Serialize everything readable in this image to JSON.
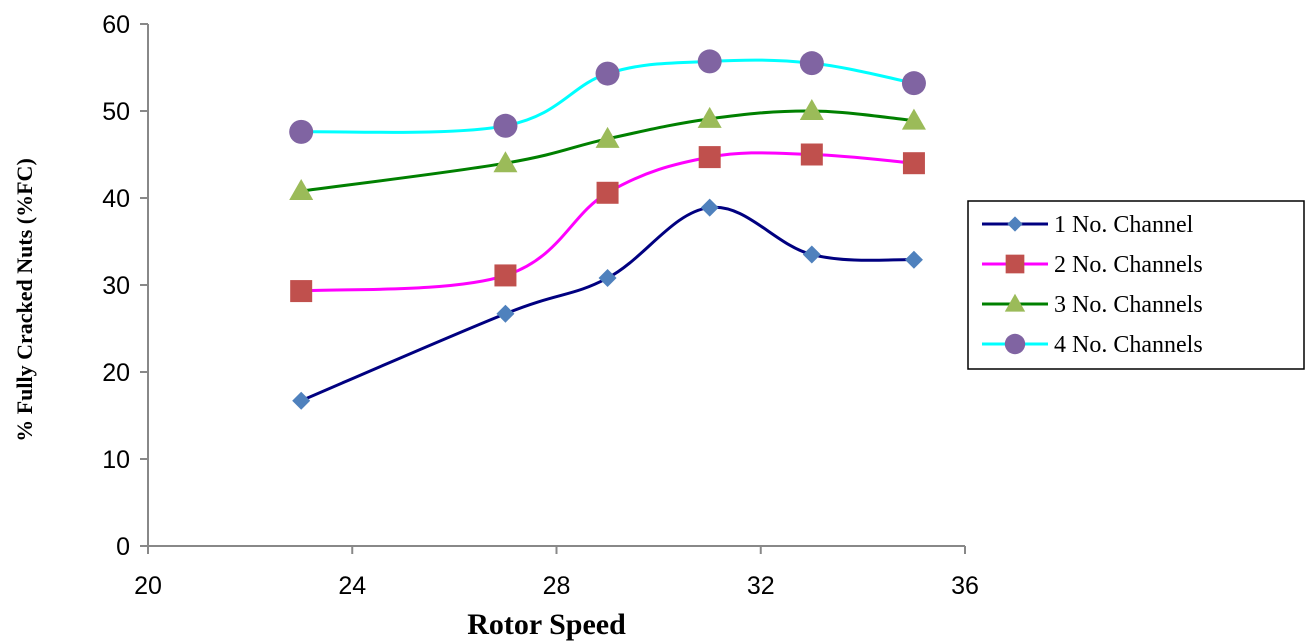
{
  "chart_data": {
    "type": "line",
    "xlabel": "Rotor Speed",
    "ylabel": "% Fully Cracked Nuts (%FC)",
    "xlim": [
      20,
      36
    ],
    "ylim": [
      0,
      60
    ],
    "x_ticks": [
      "20",
      "24",
      "28",
      "32",
      "36"
    ],
    "y_ticks": [
      "0",
      "10",
      "20",
      "30",
      "40",
      "50",
      "60"
    ],
    "grid": false,
    "legend_position": "right",
    "x": [
      23,
      27,
      29,
      31,
      33,
      35
    ],
    "series": [
      {
        "name": "1 No. Channel",
        "values": [
          16.7,
          26.7,
          30.8,
          38.9,
          33.5,
          32.9
        ],
        "color": "#000080",
        "marker_color": "#4f81bd",
        "marker": "diamond"
      },
      {
        "name": "2 No. Channels",
        "values": [
          29.3,
          31.1,
          40.6,
          44.7,
          45.0,
          44.0
        ],
        "color": "#ff00ff",
        "marker_color": "#c0504d",
        "marker": "square"
      },
      {
        "name": "3 No. Channels",
        "values": [
          40.8,
          44.0,
          46.8,
          49.1,
          50.0,
          48.9
        ],
        "color": "#008000",
        "marker_color": "#9bbb59",
        "marker": "triangle"
      },
      {
        "name": "4 No. Channels",
        "values": [
          47.6,
          48.3,
          54.3,
          55.7,
          55.5,
          53.2
        ],
        "color": "#00ffff",
        "marker_color": "#8064a2",
        "marker": "circle"
      }
    ]
  }
}
